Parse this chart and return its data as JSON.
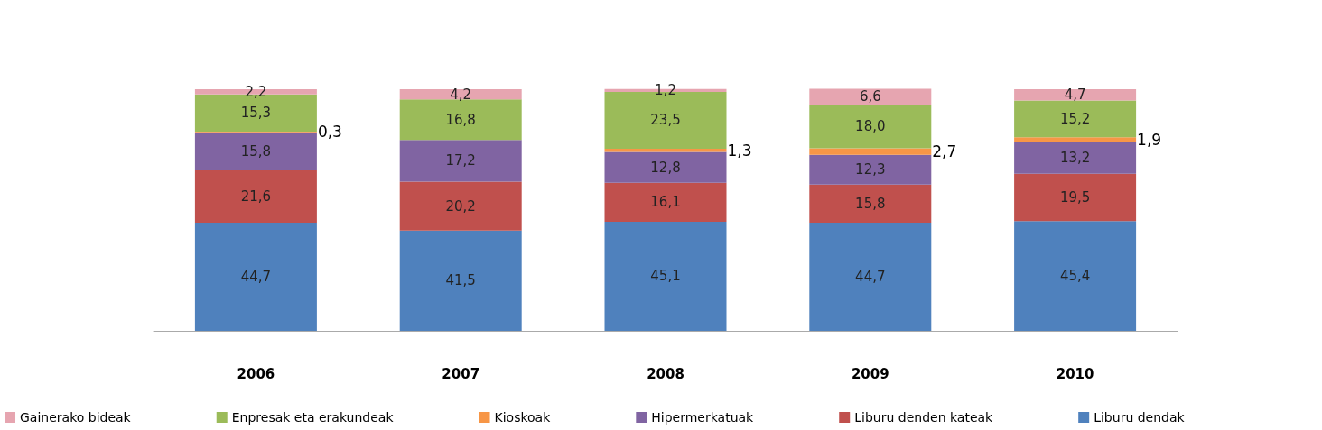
{
  "chart_data": {
    "type": "bar",
    "stacked": true,
    "categories": [
      "2006",
      "2007",
      "2008",
      "2009",
      "2010"
    ],
    "legend": "bottom",
    "series": [
      {
        "name": "Liburu dendak",
        "color": "#4f81bd",
        "values": [
          44.7,
          41.5,
          45.1,
          44.7,
          45.4
        ],
        "value_labels": [
          "44,7",
          "41,5",
          "45,1",
          "44,7",
          "45,4"
        ]
      },
      {
        "name": "Liburu denden kateak",
        "color": "#c0504d",
        "values": [
          21.6,
          20.2,
          16.1,
          15.8,
          19.5
        ],
        "value_labels": [
          "21,6",
          "20,2",
          "16,1",
          "15,8",
          "19,5"
        ]
      },
      {
        "name": "Hipermerkatuak",
        "color": "#8064a2",
        "values": [
          15.8,
          17.2,
          12.8,
          12.3,
          13.2
        ],
        "value_labels": [
          "15,8",
          "17,2",
          "12,8",
          "12,3",
          "13,2"
        ]
      },
      {
        "name": "Kioskoak",
        "color": "#f79646",
        "values": [
          0.3,
          0.0,
          1.3,
          2.7,
          1.9
        ],
        "value_labels": [
          "0,3",
          null,
          "1,3",
          "2,7",
          "1,9"
        ]
      },
      {
        "name": "Enpresak eta erakundeak",
        "color": "#9bbb59",
        "values": [
          15.3,
          16.8,
          23.5,
          18.0,
          15.2
        ],
        "value_labels": [
          "15,3",
          "16,8",
          "23,5",
          "18,0",
          "15,2"
        ]
      },
      {
        "name": "Gainerako bideak",
        "color": "#e6a5b0",
        "values": [
          2.2,
          4.2,
          1.2,
          6.6,
          4.7
        ],
        "value_labels": [
          "2,2",
          "4,2",
          "1,2",
          "6,6",
          "4,7"
        ]
      }
    ]
  }
}
